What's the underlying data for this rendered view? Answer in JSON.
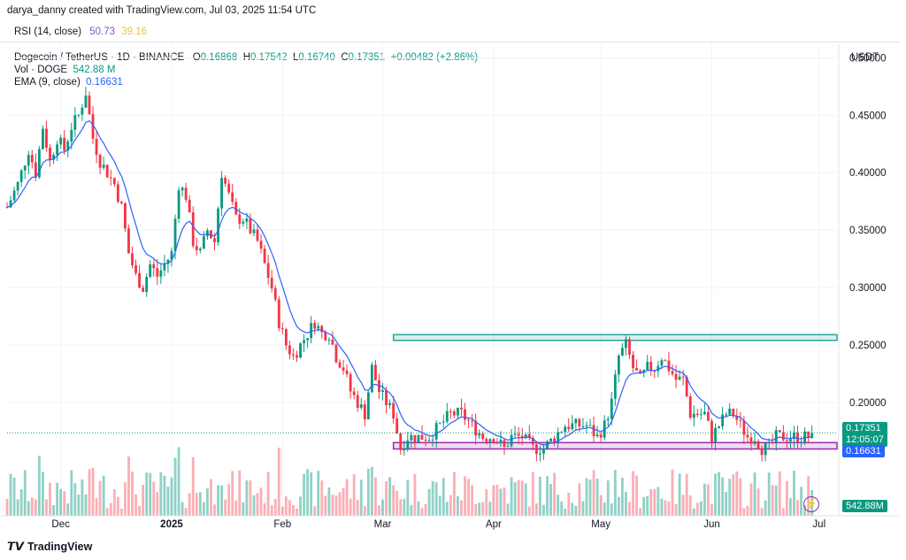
{
  "header": {
    "credit": "darya_danny created with TradingView.com, Jul 03, 2025 11:54 UTC"
  },
  "rsi": {
    "label": "RSI (14, close)",
    "value": "50.73",
    "signal": "39.16"
  },
  "legend": {
    "symbol": "Dogecoin / TetherUS · 1D · BINANCE",
    "open_label": "O",
    "open": "0.16868",
    "high_label": "H",
    "high": "0.17542",
    "low_label": "L",
    "low": "0.16740",
    "close_label": "C",
    "close": "0.17351",
    "change": "+0.00482 (+2.86%)",
    "vol_label": "Vol · DOGE",
    "vol_value": "542.88 M",
    "ema_label": "EMA (9, close)",
    "ema_value": "0.16631"
  },
  "axis_unit": "USDT",
  "tags": {
    "price": "0.17351",
    "countdown": "12:05:07",
    "ema": "0.16631",
    "volume": "542.88M"
  },
  "brand": "TradingView",
  "colors": {
    "up": "#089981",
    "down": "#f23645",
    "ema": "#2962ff",
    "resistance": "#26a69a",
    "support": "#9c27b0"
  },
  "chart_data": {
    "type": "candlestick",
    "title": "Dogecoin / TetherUS · 1D · BINANCE",
    "ylabel": "USDT",
    "ylim": [
      0.146,
      0.508
    ],
    "y_ticks": [
      "0.50000",
      "0.45000",
      "0.40000",
      "0.35000",
      "0.30000",
      "0.25000",
      "0.20000"
    ],
    "x_ticks": [
      "Dec",
      "2025",
      "Feb",
      "Mar",
      "Apr",
      "May",
      "Jun",
      "Jul"
    ],
    "x_tick_days": [
      15,
      46,
      77,
      105,
      136,
      166,
      197,
      227
    ],
    "start_day": 0,
    "end_day": 232,
    "close_anchors": [
      [
        0,
        0.37
      ],
      [
        3,
        0.39
      ],
      [
        6,
        0.42
      ],
      [
        8,
        0.4
      ],
      [
        10,
        0.44
      ],
      [
        12,
        0.41
      ],
      [
        14,
        0.43
      ],
      [
        16,
        0.42
      ],
      [
        18,
        0.44
      ],
      [
        20,
        0.45
      ],
      [
        22,
        0.47
      ],
      [
        24,
        0.43
      ],
      [
        26,
        0.41
      ],
      [
        28,
        0.4
      ],
      [
        30,
        0.39
      ],
      [
        32,
        0.37
      ],
      [
        34,
        0.33
      ],
      [
        36,
        0.31
      ],
      [
        38,
        0.3
      ],
      [
        40,
        0.32
      ],
      [
        42,
        0.31
      ],
      [
        44,
        0.32
      ],
      [
        46,
        0.33
      ],
      [
        48,
        0.39
      ],
      [
        50,
        0.38
      ],
      [
        52,
        0.34
      ],
      [
        54,
        0.33
      ],
      [
        56,
        0.35
      ],
      [
        58,
        0.34
      ],
      [
        60,
        0.4
      ],
      [
        62,
        0.38
      ],
      [
        64,
        0.36
      ],
      [
        66,
        0.36
      ],
      [
        68,
        0.35
      ],
      [
        70,
        0.34
      ],
      [
        72,
        0.32
      ],
      [
        74,
        0.3
      ],
      [
        76,
        0.27
      ],
      [
        78,
        0.25
      ],
      [
        80,
        0.24
      ],
      [
        82,
        0.25
      ],
      [
        84,
        0.26
      ],
      [
        86,
        0.27
      ],
      [
        88,
        0.26
      ],
      [
        90,
        0.26
      ],
      [
        92,
        0.24
      ],
      [
        94,
        0.23
      ],
      [
        96,
        0.21
      ],
      [
        98,
        0.2
      ],
      [
        100,
        0.19
      ],
      [
        102,
        0.23
      ],
      [
        104,
        0.21
      ],
      [
        106,
        0.2
      ],
      [
        108,
        0.19
      ],
      [
        110,
        0.16
      ],
      [
        112,
        0.17
      ],
      [
        115,
        0.17
      ],
      [
        118,
        0.17
      ],
      [
        121,
        0.18
      ],
      [
        124,
        0.19
      ],
      [
        127,
        0.19
      ],
      [
        130,
        0.18
      ],
      [
        133,
        0.17
      ],
      [
        136,
        0.17
      ],
      [
        139,
        0.16
      ],
      [
        141,
        0.17
      ],
      [
        144,
        0.17
      ],
      [
        147,
        0.16
      ],
      [
        150,
        0.16
      ],
      [
        153,
        0.17
      ],
      [
        156,
        0.18
      ],
      [
        159,
        0.18
      ],
      [
        162,
        0.18
      ],
      [
        165,
        0.17
      ],
      [
        167,
        0.18
      ],
      [
        169,
        0.2
      ],
      [
        171,
        0.24
      ],
      [
        173,
        0.25
      ],
      [
        175,
        0.23
      ],
      [
        177,
        0.22
      ],
      [
        179,
        0.23
      ],
      [
        181,
        0.23
      ],
      [
        183,
        0.24
      ],
      [
        185,
        0.23
      ],
      [
        187,
        0.22
      ],
      [
        189,
        0.22
      ],
      [
        191,
        0.19
      ],
      [
        193,
        0.19
      ],
      [
        195,
        0.19
      ],
      [
        197,
        0.17
      ],
      [
        199,
        0.18
      ],
      [
        201,
        0.19
      ],
      [
        203,
        0.19
      ],
      [
        205,
        0.18
      ],
      [
        207,
        0.17
      ],
      [
        209,
        0.17
      ],
      [
        211,
        0.16
      ],
      [
        213,
        0.16
      ],
      [
        215,
        0.17
      ],
      [
        217,
        0.17
      ],
      [
        219,
        0.17
      ],
      [
        221,
        0.17
      ],
      [
        223,
        0.17
      ],
      [
        225,
        0.17
      ]
    ],
    "ema": {
      "name": "EMA (9, close)",
      "last": 0.16631
    },
    "zones": [
      {
        "name": "resistance",
        "low": 0.254,
        "high": 0.259,
        "from_day": 108,
        "to_day": 232
      },
      {
        "name": "support",
        "low": 0.1595,
        "high": 0.165,
        "from_day": 108,
        "to_day": 232
      }
    ],
    "last_close": 0.17351,
    "last_volume": "542.88M"
  }
}
